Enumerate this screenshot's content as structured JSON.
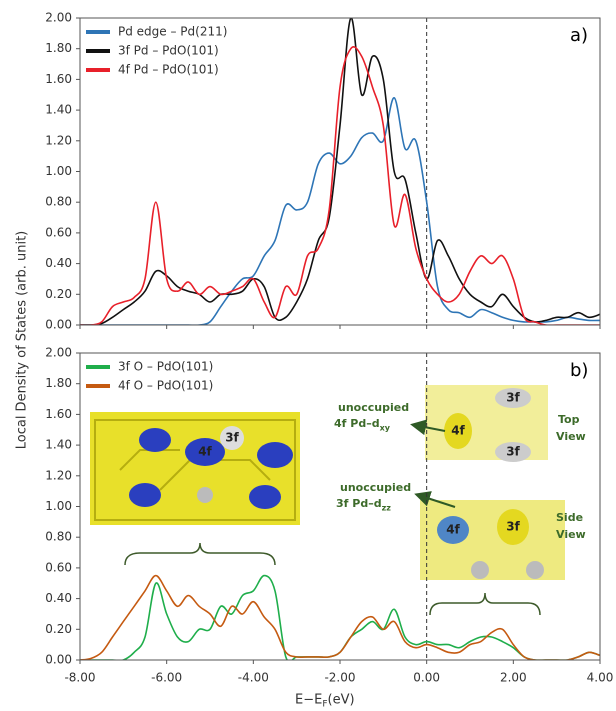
{
  "ylabel": "Local Density of States (arb. unit)",
  "chart_data": [
    {
      "type": "line",
      "panel_label": "a)",
      "legend": "upper left",
      "vline": 0,
      "grid": false,
      "x": [
        -8,
        -7.75,
        -7.5,
        -7.25,
        -7,
        -6.75,
        -6.5,
        -6.25,
        -6,
        -5.75,
        -5.5,
        -5.25,
        -5,
        -4.75,
        -4.5,
        -4.25,
        -4,
        -3.75,
        -3.5,
        -3.25,
        -3,
        -2.75,
        -2.5,
        -2.25,
        -2,
        -1.75,
        -1.5,
        -1.25,
        -1,
        -0.75,
        -0.5,
        -0.25,
        0,
        0.25,
        0.5,
        0.75,
        1,
        1.25,
        1.5,
        1.75,
        2,
        2.25,
        2.5,
        2.75,
        3,
        3.25,
        3.5,
        3.75,
        4
      ],
      "series": [
        {
          "name": "Pd edge – Pd(211)",
          "color": "#2e75b6",
          "values": [
            0,
            0,
            0,
            0,
            0,
            0,
            0,
            0,
            0,
            0,
            0,
            0,
            0.02,
            0.12,
            0.22,
            0.3,
            0.32,
            0.45,
            0.55,
            0.78,
            0.75,
            0.8,
            1.05,
            1.12,
            1.05,
            1.1,
            1.22,
            1.25,
            1.2,
            1.48,
            1.15,
            1.2,
            0.8,
            0.25,
            0.1,
            0.08,
            0.05,
            0.1,
            0.08,
            0.05,
            0.03,
            0.02,
            0.02,
            0.02,
            0.03,
            0.05,
            0.04,
            0.03,
            0.03
          ]
        },
        {
          "name": "3f Pd – PdO(101)",
          "color": "#111111",
          "values": [
            0,
            0,
            0.01,
            0.05,
            0.1,
            0.15,
            0.22,
            0.35,
            0.32,
            0.25,
            0.22,
            0.2,
            0.15,
            0.2,
            0.2,
            0.22,
            0.3,
            0.25,
            0.05,
            0.05,
            0.15,
            0.3,
            0.55,
            0.7,
            1.3,
            2.0,
            1.5,
            1.75,
            1.6,
            1.0,
            0.95,
            0.6,
            0.3,
            0.55,
            0.45,
            0.3,
            0.2,
            0.15,
            0.12,
            0.2,
            0.12,
            0.05,
            0.02,
            0.03,
            0.05,
            0.05,
            0.08,
            0.05,
            0.07
          ]
        },
        {
          "name": "4f Pd – PdO(101)",
          "color": "#e8202a",
          "values": [
            0,
            0,
            0.02,
            0.12,
            0.15,
            0.18,
            0.3,
            0.8,
            0.3,
            0.22,
            0.28,
            0.2,
            0.25,
            0.2,
            0.22,
            0.25,
            0.3,
            0.15,
            0.05,
            0.25,
            0.2,
            0.45,
            0.5,
            0.75,
            1.55,
            1.8,
            1.75,
            1.55,
            1.3,
            0.65,
            0.85,
            0.5,
            0.3,
            0.2,
            0.15,
            0.2,
            0.35,
            0.45,
            0.4,
            0.45,
            0.3,
            0.05,
            0.02,
            0,
            0,
            0,
            0,
            0,
            0
          ]
        }
      ],
      "xlim": [
        -8,
        4
      ],
      "ylim": [
        0,
        2
      ],
      "xticks": [
        -8,
        -6,
        -4,
        -2,
        0,
        2,
        4
      ],
      "yticks": [
        {
          "value": 0,
          "label": "0.00"
        },
        {
          "value": 0.2,
          "label": "0.20"
        },
        {
          "value": 0.4,
          "label": "0.40"
        },
        {
          "value": 0.6,
          "label": "0.60"
        },
        {
          "value": 0.8,
          "label": "0.80"
        },
        {
          "value": 1,
          "label": "1.00"
        },
        {
          "value": 1.2,
          "label": "1.20"
        },
        {
          "value": 1.4,
          "label": "1.40"
        },
        {
          "value": 1.6,
          "label": "1.60"
        },
        {
          "value": 1.8,
          "label": "1.80"
        },
        {
          "value": 2,
          "label": "2.00"
        }
      ]
    },
    {
      "type": "line",
      "panel_label": "b)",
      "legend": "upper left",
      "vline": 0,
      "grid": false,
      "xlabel": {
        "text": "E−E",
        "sub": "F",
        "tail": " (eV)"
      },
      "x": [
        -8,
        -7.75,
        -7.5,
        -7.25,
        -7,
        -6.75,
        -6.5,
        -6.25,
        -6,
        -5.75,
        -5.5,
        -5.25,
        -5,
        -4.75,
        -4.5,
        -4.25,
        -4,
        -3.75,
        -3.5,
        -3.25,
        -3,
        -2.75,
        -2.5,
        -2.25,
        -2,
        -1.75,
        -1.5,
        -1.25,
        -1,
        -0.75,
        -0.5,
        -0.25,
        0,
        0.25,
        0.5,
        0.75,
        1,
        1.25,
        1.5,
        1.75,
        2,
        2.25,
        2.5,
        2.75,
        3,
        3.25,
        3.5,
        3.75,
        4
      ],
      "series": [
        {
          "name": "3f O – PdO(101)",
          "color": "#1fae4b",
          "values": [
            0,
            0,
            0,
            0,
            0,
            0.05,
            0.15,
            0.5,
            0.3,
            0.15,
            0.12,
            0.2,
            0.2,
            0.35,
            0.3,
            0.42,
            0.45,
            0.55,
            0.45,
            0.02,
            0.02,
            0.02,
            0.02,
            0.02,
            0.05,
            0.15,
            0.2,
            0.25,
            0.2,
            0.33,
            0.15,
            0.1,
            0.12,
            0.1,
            0.1,
            0.08,
            0.12,
            0.15,
            0.15,
            0.12,
            0.08,
            0.02,
            0,
            0,
            0,
            0,
            0.02,
            0.05,
            0.03
          ]
        },
        {
          "name": "4f O – PdO(101)",
          "color": "#c55a11",
          "values": [
            0,
            0.01,
            0.05,
            0.15,
            0.25,
            0.35,
            0.45,
            0.55,
            0.45,
            0.35,
            0.42,
            0.35,
            0.3,
            0.22,
            0.35,
            0.3,
            0.38,
            0.28,
            0.2,
            0.05,
            0.02,
            0.02,
            0.02,
            0.02,
            0.05,
            0.15,
            0.25,
            0.28,
            0.2,
            0.25,
            0.12,
            0.08,
            0.1,
            0.08,
            0.05,
            0.05,
            0.1,
            0.12,
            0.18,
            0.2,
            0.1,
            0.02,
            0,
            0,
            0,
            0,
            0.02,
            0.05,
            0.03
          ]
        }
      ],
      "xlim": [
        -8,
        4
      ],
      "ylim": [
        0,
        2
      ],
      "xticks": [
        {
          "value": -8,
          "label": "-8.00"
        },
        {
          "value": -6,
          "label": "-6.00"
        },
        {
          "value": -4,
          "label": "-4.00"
        },
        {
          "value": -2,
          "label": "-2.00"
        },
        {
          "value": 0,
          "label": "0.00"
        },
        {
          "value": 2,
          "label": "2.00"
        },
        {
          "value": 4,
          "label": "4.00"
        }
      ],
      "yticks": [
        {
          "value": 0,
          "label": "0.00"
        },
        {
          "value": 0.2,
          "label": "0.20"
        },
        {
          "value": 0.4,
          "label": "0.40"
        },
        {
          "value": 0.6,
          "label": "0.60"
        },
        {
          "value": 0.8,
          "label": "0.80"
        },
        {
          "value": 1,
          "label": "1.00"
        },
        {
          "value": 1.2,
          "label": "1.20"
        },
        {
          "value": 1.4,
          "label": "1.40"
        },
        {
          "value": 1.6,
          "label": "1.60"
        },
        {
          "value": 1.8,
          "label": "1.80"
        },
        {
          "value": 2,
          "label": "2.00"
        }
      ],
      "annotations": [
        {
          "text": "unoccupied"
        },
        {
          "text": "4f Pd–d",
          "sub": "xy"
        },
        {
          "text": "Top"
        },
        {
          "text": "View"
        },
        {
          "text": "unoccupied"
        },
        {
          "text": "3f Pd–d",
          "sub": "zz"
        },
        {
          "text": "Side"
        },
        {
          "text": "View"
        }
      ],
      "inset_labels": [
        "4f",
        "3f",
        "3f",
        "4f",
        "3f",
        "4f",
        "3f"
      ]
    }
  ]
}
